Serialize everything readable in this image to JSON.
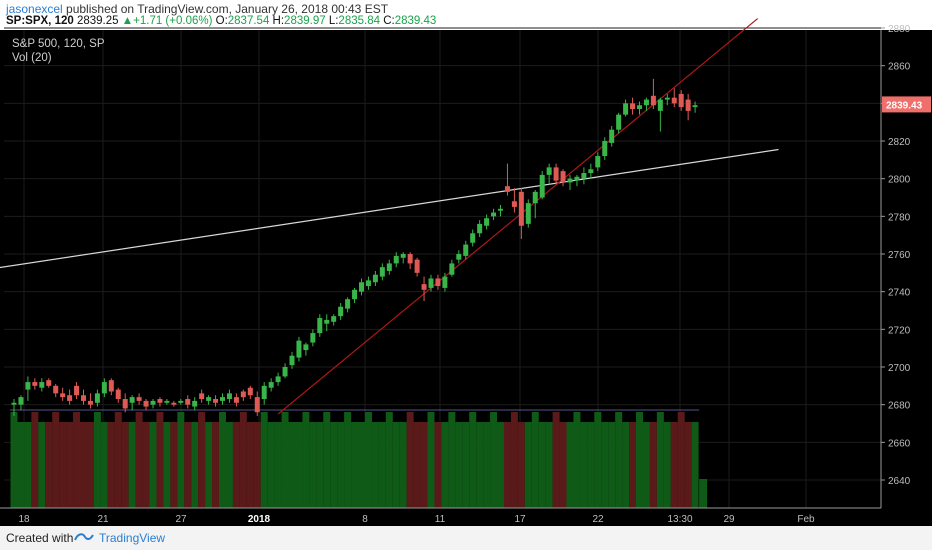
{
  "header": {
    "user": "jasonexcel",
    "published_text": " published on TradingView.com, January 26, 2018 00:43 EST",
    "symbol": "SP:SPX, 120",
    "last": "2839.25",
    "change": "+1.71 (+0.06%)",
    "open_label": "O:",
    "open": "2837.54",
    "high_label": "H:",
    "high": "2839.97",
    "low_label": "L:",
    "low": "2835.84",
    "close_label": "C:",
    "close": "2839.43"
  },
  "legend": {
    "main": "S&P 500, 120, SP",
    "volume": "Vol (20)"
  },
  "footer": {
    "created_with": "Created with",
    "brand": "TradingView"
  },
  "colors": {
    "up": "#39b54a",
    "down": "#e05a55",
    "vol_up": "#0f5a16",
    "vol_down": "#5a1a1a",
    "trend_red": "#b01818",
    "trend_white": "#d8d8d8",
    "price_tag": "#ef6f6a"
  },
  "chart_data": {
    "type": "candlestick",
    "y_ticks": [
      2640,
      2660,
      2680,
      2700,
      2720,
      2740,
      2760,
      2780,
      2800,
      2820,
      2840,
      2860,
      2880
    ],
    "ylim": [
      2622,
      2884
    ],
    "x_labels": [
      "18",
      "21",
      "27",
      "2018",
      "8",
      "11",
      "17",
      "22",
      "13:30",
      "29",
      "Feb"
    ],
    "last_price_label": "2839.43",
    "series": [
      {
        "o": 2680,
        "h": 2683,
        "l": 2674,
        "c": 2681
      },
      {
        "o": 2680,
        "h": 2685,
        "l": 2677,
        "c": 2684
      },
      {
        "o": 2688,
        "h": 2695,
        "l": 2682,
        "c": 2692
      },
      {
        "o": 2692,
        "h": 2694,
        "l": 2688,
        "c": 2690
      },
      {
        "o": 2689,
        "h": 2694,
        "l": 2687,
        "c": 2692
      },
      {
        "o": 2693,
        "h": 2694,
        "l": 2689,
        "c": 2690
      },
      {
        "o": 2690,
        "h": 2691,
        "l": 2684,
        "c": 2686
      },
      {
        "o": 2686,
        "h": 2689,
        "l": 2682,
        "c": 2684
      },
      {
        "o": 2685,
        "h": 2688,
        "l": 2680,
        "c": 2682
      },
      {
        "o": 2690,
        "h": 2692,
        "l": 2683,
        "c": 2685
      },
      {
        "o": 2685,
        "h": 2688,
        "l": 2680,
        "c": 2682
      },
      {
        "o": 2682,
        "h": 2686,
        "l": 2678,
        "c": 2680
      },
      {
        "o": 2681,
        "h": 2688,
        "l": 2679,
        "c": 2686
      },
      {
        "o": 2686,
        "h": 2694,
        "l": 2684,
        "c": 2692
      },
      {
        "o": 2693,
        "h": 2694,
        "l": 2685,
        "c": 2687
      },
      {
        "o": 2688,
        "h": 2689,
        "l": 2681,
        "c": 2683
      },
      {
        "o": 2683,
        "h": 2686,
        "l": 2676,
        "c": 2678
      },
      {
        "o": 2681,
        "h": 2685,
        "l": 2677,
        "c": 2684
      },
      {
        "o": 2684,
        "h": 2686,
        "l": 2680,
        "c": 2682
      },
      {
        "o": 2682,
        "h": 2683,
        "l": 2677,
        "c": 2679
      },
      {
        "o": 2680,
        "h": 2683,
        "l": 2678,
        "c": 2682
      },
      {
        "o": 2683,
        "h": 2684,
        "l": 2679,
        "c": 2681
      },
      {
        "o": 2681,
        "h": 2683,
        "l": 2680,
        "c": 2682
      },
      {
        "o": 2681,
        "h": 2682,
        "l": 2679,
        "c": 2680
      },
      {
        "o": 2681,
        "h": 2683,
        "l": 2680,
        "c": 2682
      },
      {
        "o": 2683,
        "h": 2685,
        "l": 2678,
        "c": 2680
      },
      {
        "o": 2679,
        "h": 2684,
        "l": 2677,
        "c": 2682
      },
      {
        "o": 2686,
        "h": 2688,
        "l": 2681,
        "c": 2683
      },
      {
        "o": 2682,
        "h": 2685,
        "l": 2680,
        "c": 2684
      },
      {
        "o": 2683,
        "h": 2685,
        "l": 2679,
        "c": 2681
      },
      {
        "o": 2682,
        "h": 2686,
        "l": 2680,
        "c": 2684
      },
      {
        "o": 2683,
        "h": 2688,
        "l": 2681,
        "c": 2686
      },
      {
        "o": 2684,
        "h": 2686,
        "l": 2679,
        "c": 2681
      },
      {
        "o": 2687,
        "h": 2688,
        "l": 2682,
        "c": 2684
      },
      {
        "o": 2689,
        "h": 2690,
        "l": 2683,
        "c": 2685
      },
      {
        "o": 2684,
        "h": 2687,
        "l": 2674,
        "c": 2676
      },
      {
        "o": 2683,
        "h": 2692,
        "l": 2680,
        "c": 2690
      },
      {
        "o": 2689,
        "h": 2694,
        "l": 2687,
        "c": 2692
      },
      {
        "o": 2692,
        "h": 2697,
        "l": 2690,
        "c": 2695
      },
      {
        "o": 2695,
        "h": 2702,
        "l": 2694,
        "c": 2700
      },
      {
        "o": 2701,
        "h": 2708,
        "l": 2699,
        "c": 2706
      },
      {
        "o": 2705,
        "h": 2716,
        "l": 2703,
        "c": 2714
      },
      {
        "o": 2709,
        "h": 2713,
        "l": 2706,
        "c": 2712
      },
      {
        "o": 2713,
        "h": 2720,
        "l": 2711,
        "c": 2718
      },
      {
        "o": 2718,
        "h": 2728,
        "l": 2716,
        "c": 2726
      },
      {
        "o": 2723,
        "h": 2728,
        "l": 2719,
        "c": 2725
      },
      {
        "o": 2724,
        "h": 2728,
        "l": 2722,
        "c": 2727
      },
      {
        "o": 2727,
        "h": 2734,
        "l": 2725,
        "c": 2732
      },
      {
        "o": 2731,
        "h": 2737,
        "l": 2729,
        "c": 2736
      },
      {
        "o": 2736,
        "h": 2742,
        "l": 2734,
        "c": 2741
      },
      {
        "o": 2740,
        "h": 2747,
        "l": 2738,
        "c": 2745
      },
      {
        "o": 2743,
        "h": 2748,
        "l": 2741,
        "c": 2746
      },
      {
        "o": 2745,
        "h": 2751,
        "l": 2743,
        "c": 2749
      },
      {
        "o": 2748,
        "h": 2755,
        "l": 2746,
        "c": 2753
      },
      {
        "o": 2751,
        "h": 2757,
        "l": 2749,
        "c": 2755
      },
      {
        "o": 2755,
        "h": 2761,
        "l": 2753,
        "c": 2759
      },
      {
        "o": 2758,
        "h": 2761,
        "l": 2755,
        "c": 2760
      },
      {
        "o": 2760,
        "h": 2761,
        "l": 2752,
        "c": 2755
      },
      {
        "o": 2757,
        "h": 2758,
        "l": 2748,
        "c": 2750
      },
      {
        "o": 2744,
        "h": 2748,
        "l": 2735,
        "c": 2741
      },
      {
        "o": 2742,
        "h": 2749,
        "l": 2740,
        "c": 2747
      },
      {
        "o": 2747,
        "h": 2749,
        "l": 2741,
        "c": 2743
      },
      {
        "o": 2742,
        "h": 2750,
        "l": 2740,
        "c": 2748
      },
      {
        "o": 2749,
        "h": 2757,
        "l": 2748,
        "c": 2755
      },
      {
        "o": 2757,
        "h": 2762,
        "l": 2755,
        "c": 2760
      },
      {
        "o": 2759,
        "h": 2767,
        "l": 2757,
        "c": 2765
      },
      {
        "o": 2766,
        "h": 2773,
        "l": 2764,
        "c": 2771
      },
      {
        "o": 2771,
        "h": 2778,
        "l": 2769,
        "c": 2776
      },
      {
        "o": 2775,
        "h": 2781,
        "l": 2773,
        "c": 2779
      },
      {
        "o": 2780,
        "h": 2784,
        "l": 2778,
        "c": 2782
      },
      {
        "o": 2783,
        "h": 2786,
        "l": 2780,
        "c": 2784
      },
      {
        "o": 2796,
        "h": 2808,
        "l": 2791,
        "c": 2793
      },
      {
        "o": 2788,
        "h": 2795,
        "l": 2782,
        "c": 2785
      },
      {
        "o": 2793,
        "h": 2795,
        "l": 2768,
        "c": 2775
      },
      {
        "o": 2776,
        "h": 2789,
        "l": 2774,
        "c": 2787
      },
      {
        "o": 2787,
        "h": 2794,
        "l": 2779,
        "c": 2793
      },
      {
        "o": 2790,
        "h": 2804,
        "l": 2789,
        "c": 2802
      },
      {
        "o": 2802,
        "h": 2808,
        "l": 2797,
        "c": 2806
      },
      {
        "o": 2806,
        "h": 2808,
        "l": 2797,
        "c": 2799
      },
      {
        "o": 2804,
        "h": 2805,
        "l": 2796,
        "c": 2798
      },
      {
        "o": 2798,
        "h": 2802,
        "l": 2794,
        "c": 2800
      },
      {
        "o": 2799,
        "h": 2802,
        "l": 2796,
        "c": 2801
      },
      {
        "o": 2800,
        "h": 2806,
        "l": 2797,
        "c": 2803
      },
      {
        "o": 2803,
        "h": 2808,
        "l": 2800,
        "c": 2805
      },
      {
        "o": 2806,
        "h": 2814,
        "l": 2804,
        "c": 2812
      },
      {
        "o": 2812,
        "h": 2822,
        "l": 2810,
        "c": 2820
      },
      {
        "o": 2819,
        "h": 2828,
        "l": 2817,
        "c": 2826
      },
      {
        "o": 2826,
        "h": 2835,
        "l": 2824,
        "c": 2834
      },
      {
        "o": 2834,
        "h": 2842,
        "l": 2833,
        "c": 2840
      },
      {
        "o": 2840,
        "h": 2843,
        "l": 2834,
        "c": 2837
      },
      {
        "o": 2837,
        "h": 2841,
        "l": 2834,
        "c": 2839
      },
      {
        "o": 2839,
        "h": 2843,
        "l": 2836,
        "c": 2842
      },
      {
        "o": 2844,
        "h": 2853,
        "l": 2837,
        "c": 2839
      },
      {
        "o": 2836,
        "h": 2843,
        "l": 2825,
        "c": 2842
      },
      {
        "o": 2842,
        "h": 2845,
        "l": 2839,
        "c": 2843
      },
      {
        "o": 2843,
        "h": 2848,
        "l": 2838,
        "c": 2840
      },
      {
        "o": 2845,
        "h": 2847,
        "l": 2836,
        "c": 2838
      },
      {
        "o": 2842,
        "h": 2845,
        "l": 2831,
        "c": 2836
      },
      {
        "o": 2838,
        "h": 2841,
        "l": 2835,
        "c": 2839
      }
    ],
    "trendlines": [
      {
        "from": {
          "i": -2.6,
          "price": 2752.5
        },
        "to": {
          "i": 110,
          "price": 2815.5
        }
      },
      {
        "from": {
          "i": 38,
          "price": 2675
        },
        "to": {
          "i": 107,
          "price": 2885
        }
      }
    ]
  }
}
